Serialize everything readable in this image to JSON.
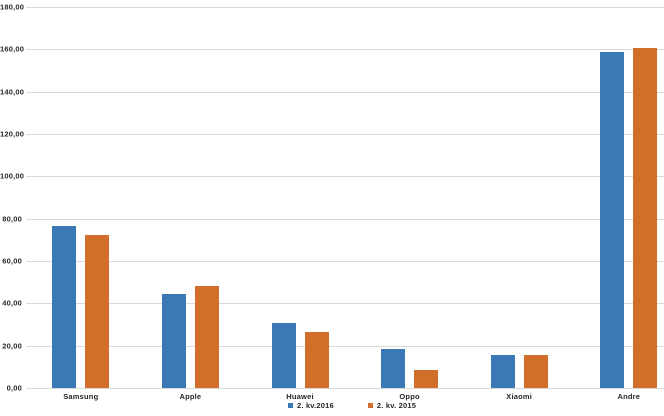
{
  "chart_data": {
    "type": "bar",
    "title": "",
    "xlabel": "",
    "ylabel": "",
    "categories": [
      "Samsung",
      "Apple",
      "Huawei",
      "Oppo",
      "Xiaomi",
      "Andre"
    ],
    "series": [
      {
        "name": "2. kv.2016",
        "color": "#3A79B5",
        "values": [
          76.7,
          44.4,
          30.7,
          18.5,
          15.5,
          158.6
        ]
      },
      {
        "name": "2. kv. 2015",
        "color": "#D16E2A",
        "values": [
          72.1,
          48.1,
          26.5,
          8.6,
          15.5,
          160.4
        ]
      }
    ],
    "ylim": [
      0,
      180
    ],
    "ytick_step": 20,
    "ytick_labels": [
      "0,00",
      "20,00",
      "40,00",
      "60,00",
      "80,00",
      "100,00",
      "120,00",
      "140,00",
      "160,00",
      "180,00"
    ],
    "grid": true,
    "legend_position": "bottom-center",
    "colors": {
      "gridline": "#D9D9D9",
      "text": "#262626",
      "background": "#FFFFFF"
    }
  }
}
